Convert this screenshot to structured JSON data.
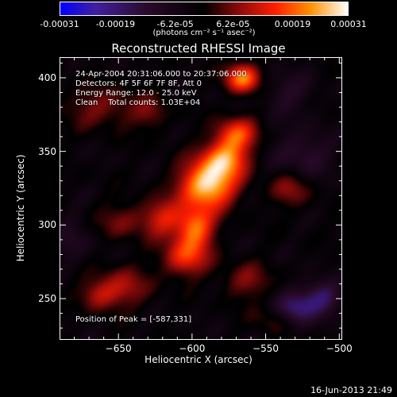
{
  "colorbar": {
    "ticks": [
      "-0.00031",
      "-0.00019",
      "-6.2e-05",
      "6.2e-05",
      "0.00019",
      "0.00031"
    ],
    "tick_values": [
      -0.00031,
      -0.00019,
      -6.2e-05,
      6.2e-05,
      0.00019,
      0.00031
    ],
    "range": [
      -0.00031,
      0.00031
    ],
    "units": "(photons cm⁻² s⁻¹ asec⁻²)",
    "colors": [
      "#0000ff",
      "#4020a0",
      "#2a0a2a",
      "#000000",
      "#8a0a0a",
      "#ff2000",
      "#ff9000",
      "#ffffff"
    ]
  },
  "annotations": {
    "line1": "24-Apr-2004 20:31:06.000 to 20:37:06.000",
    "line2": "Detectors: 4F 5F 6F 7F 8F, Att 0",
    "line3": "Energy Range: 12.0 - 25.0 keV",
    "line4": "Clean    Total counts: 1.03E+04",
    "peak": "Position of Peak = [-587,331]"
  },
  "footer": "16-Jun-2013 21:49",
  "chart_data": {
    "type": "heatmap",
    "title": "Reconstructed RHESSI Image",
    "xlabel": "Heliocentric X (arcsec)",
    "ylabel": "Heliocentric Y (arcsec)",
    "xlim": [
      -690,
      -498
    ],
    "ylim": [
      222,
      414
    ],
    "xticks": [
      -650,
      -600,
      -550,
      -500
    ],
    "yticks": [
      250,
      300,
      350,
      400
    ],
    "value_range": [
      -0.00031,
      0.00031
    ],
    "peak_position": [
      -587,
      331
    ],
    "sources": [
      {
        "x": -590,
        "y": 327,
        "amp": 1.0,
        "sx": 13,
        "sy": 11
      },
      {
        "x": -578,
        "y": 345,
        "amp": 0.75,
        "sx": 11,
        "sy": 9
      },
      {
        "x": -570,
        "y": 362,
        "amp": 0.6,
        "sx": 10,
        "sy": 8
      },
      {
        "x": -566,
        "y": 400,
        "amp": 0.8,
        "sx": 8,
        "sy": 7
      },
      {
        "x": -598,
        "y": 298,
        "amp": 0.7,
        "sx": 9,
        "sy": 10
      },
      {
        "x": -605,
        "y": 278,
        "amp": 0.55,
        "sx": 11,
        "sy": 9
      },
      {
        "x": -620,
        "y": 305,
        "amp": 0.45,
        "sx": 10,
        "sy": 9
      },
      {
        "x": -648,
        "y": 258,
        "amp": 0.35,
        "sx": 14,
        "sy": 10
      },
      {
        "x": -664,
        "y": 252,
        "amp": 0.3,
        "sx": 9,
        "sy": 7
      },
      {
        "x": -660,
        "y": 380,
        "amp": 0.28,
        "sx": 20,
        "sy": 10
      },
      {
        "x": -648,
        "y": 303,
        "amp": 0.26,
        "sx": 12,
        "sy": 9
      },
      {
        "x": -533,
        "y": 325,
        "amp": 0.32,
        "sx": 10,
        "sy": 9
      },
      {
        "x": -563,
        "y": 262,
        "amp": 0.28,
        "sx": 12,
        "sy": 9
      },
      {
        "x": -545,
        "y": 236,
        "amp": 0.22,
        "sx": 10,
        "sy": 7
      },
      {
        "x": -627,
        "y": 375,
        "amp": 0.2,
        "sx": 8,
        "sy": 8
      },
      {
        "x": -530,
        "y": 243,
        "amp": -0.55,
        "sx": 10,
        "sy": 8
      },
      {
        "x": -512,
        "y": 252,
        "amp": -0.45,
        "sx": 9,
        "sy": 8
      },
      {
        "x": -525,
        "y": 348,
        "amp": -0.3,
        "sx": 14,
        "sy": 12
      },
      {
        "x": -535,
        "y": 390,
        "amp": -0.22,
        "sx": 12,
        "sy": 10
      },
      {
        "x": -682,
        "y": 290,
        "amp": -0.18,
        "sx": 10,
        "sy": 12
      }
    ],
    "background_level": -0.08,
    "colorbar": true
  }
}
